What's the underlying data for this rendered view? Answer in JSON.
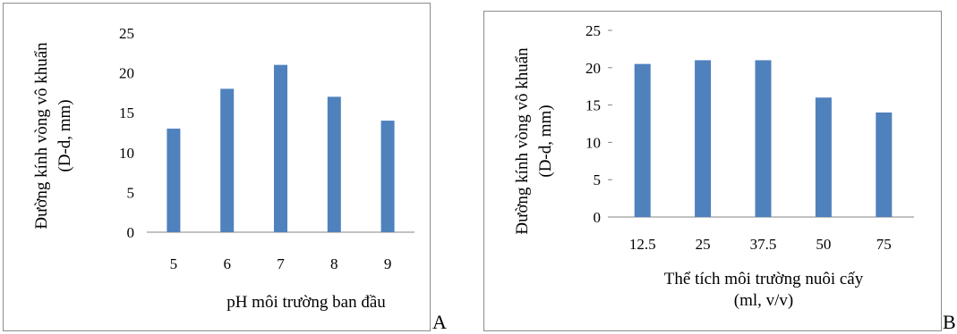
{
  "charts": {
    "a": {
      "letter": "A",
      "chart_data": {
        "type": "bar",
        "categories": [
          "5",
          "6",
          "7",
          "8",
          "9"
        ],
        "values": [
          13,
          18,
          21,
          17,
          14
        ],
        "title": "",
        "xlabel": "pH môi trường ban đầu",
        "ylabel": [
          "Đường kính vòng vô khuẩn",
          "(D-d, mm)"
        ],
        "ylim": [
          0,
          25
        ],
        "yticks": [
          "0",
          "5",
          "10",
          "15",
          "20",
          "25"
        ],
        "grid": false,
        "legend": "none",
        "bar_color": "#4f81bd"
      }
    },
    "b": {
      "letter": "B",
      "chart_data": {
        "type": "bar",
        "categories": [
          "12.5",
          "25",
          "37.5",
          "50",
          "75"
        ],
        "values": [
          20.5,
          21,
          21,
          16,
          14
        ],
        "title": "",
        "xlabel": [
          "Thể tích môi trường nuôi cấy",
          "(ml, v/v)"
        ],
        "ylabel": [
          "Đường kính vòng vô khuẩn",
          "(D-d, mm)"
        ],
        "ylim": [
          0,
          25
        ],
        "yticks": [
          "0",
          "5",
          "10",
          "15",
          "20",
          "25"
        ],
        "grid": false,
        "legend": "none",
        "bar_color": "#4f81bd"
      }
    }
  }
}
